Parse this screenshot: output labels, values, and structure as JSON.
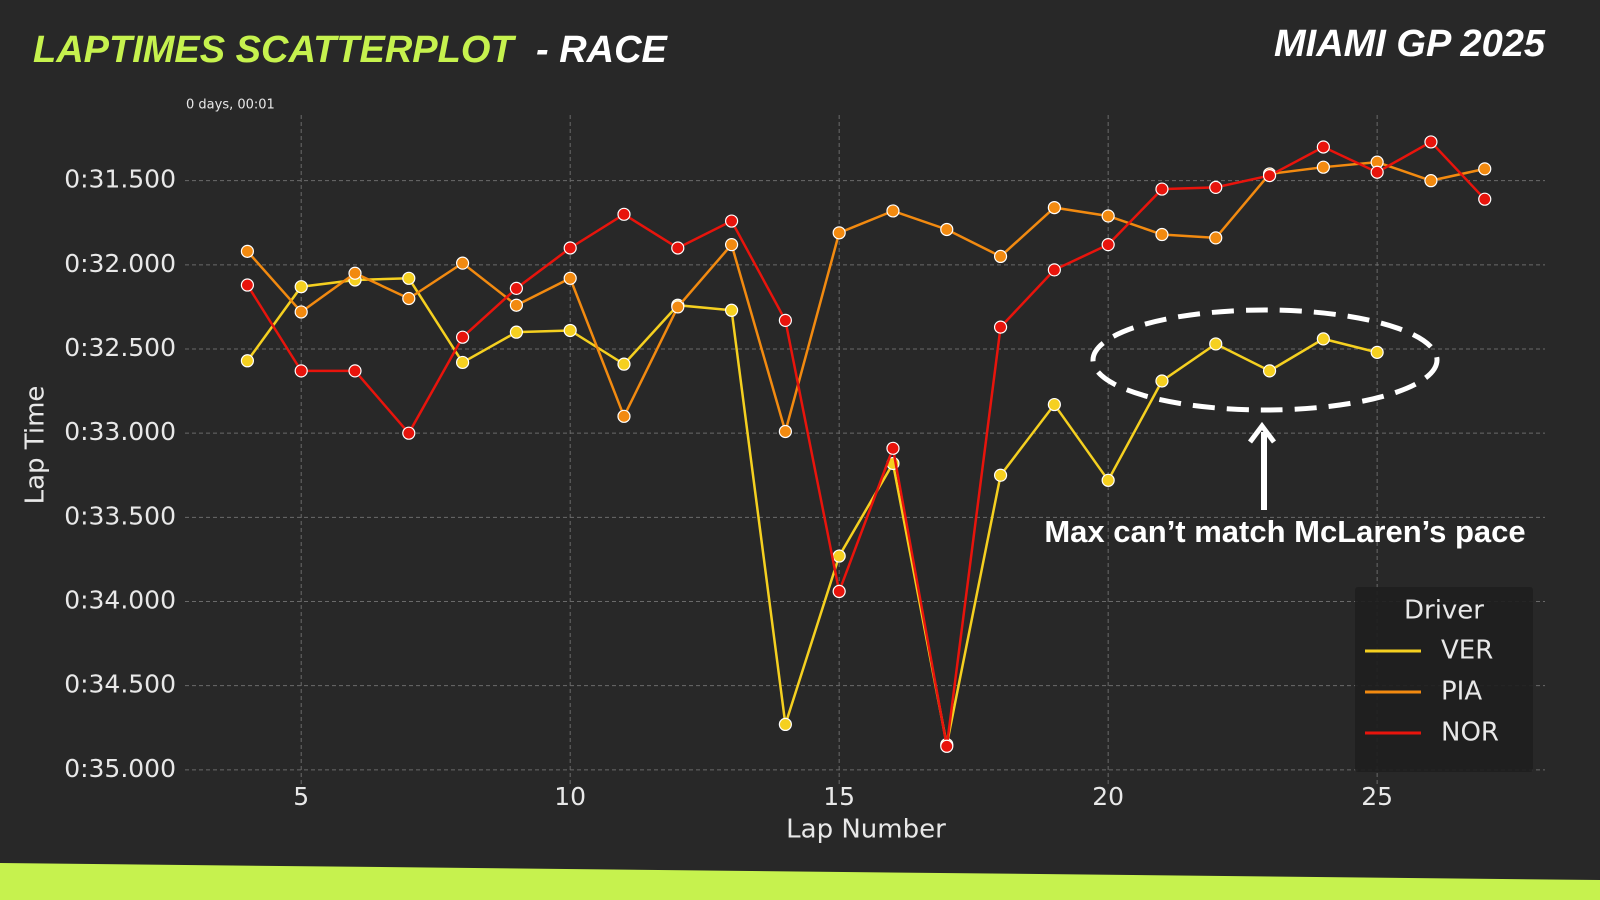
{
  "chart_data": {
    "type": "line",
    "title": "LAPTIMES SCATTERPLOT",
    "title_suffix": "- RACE",
    "subtitle": "MIAMI GP 2025",
    "offset_label": "0 days, 00:01",
    "x_label": "Lap Number",
    "y_label": "Lap Time",
    "annotation": "Max can’t match McLaren’s pace",
    "legend_title": "Driver",
    "legend": "lower right",
    "grid": true,
    "xlim": [
      2.84,
      28.12
    ],
    "xticks": [
      5,
      10,
      15,
      20,
      25
    ],
    "ylim": [
      35.09,
      31.11
    ],
    "yticks": [
      {
        "value": 31.5,
        "label": "0:31.500"
      },
      {
        "value": 32.0,
        "label": "0:32.000"
      },
      {
        "value": 32.5,
        "label": "0:32.500"
      },
      {
        "value": 33.0,
        "label": "0:33.000"
      },
      {
        "value": 33.5,
        "label": "0:33.500"
      },
      {
        "value": 34.0,
        "label": "0:34.000"
      },
      {
        "value": 34.5,
        "label": "0:34.500"
      },
      {
        "value": 35.0,
        "label": "0:35.000"
      }
    ],
    "series": [
      {
        "name": "VER",
        "color": "#f5d020",
        "x": [
          4,
          5,
          6,
          7,
          8,
          9,
          10,
          11,
          12,
          13,
          14,
          15,
          16,
          17,
          18,
          19,
          20,
          21,
          22,
          23,
          24,
          25
        ],
        "values": [
          32.57,
          32.13,
          32.09,
          32.08,
          32.58,
          32.4,
          32.39,
          32.59,
          32.24,
          32.27,
          34.73,
          33.73,
          33.18,
          34.85,
          33.25,
          32.83,
          33.28,
          32.69,
          32.47,
          32.63,
          32.44,
          32.52
        ]
      },
      {
        "name": "PIA",
        "color": "#f28a10",
        "x": [
          4,
          5,
          6,
          7,
          8,
          9,
          10,
          11,
          12,
          13,
          14,
          15,
          16,
          17,
          18,
          19,
          20,
          21,
          22,
          23,
          24,
          25,
          26,
          27
        ],
        "values": [
          31.92,
          32.28,
          32.05,
          32.2,
          31.99,
          32.24,
          32.08,
          32.9,
          32.25,
          31.88,
          32.99,
          31.81,
          31.68,
          31.79,
          31.95,
          31.66,
          31.71,
          31.82,
          31.84,
          31.46,
          31.42,
          31.39,
          31.5,
          31.43
        ]
      },
      {
        "name": "NOR",
        "color": "#e8140c",
        "x": [
          4,
          5,
          6,
          7,
          8,
          9,
          10,
          11,
          12,
          13,
          14,
          15,
          16,
          17,
          18,
          19,
          20,
          21,
          22,
          23,
          24,
          25,
          26,
          27
        ],
        "values": [
          32.12,
          32.63,
          32.63,
          33.0,
          32.43,
          32.14,
          31.9,
          31.7,
          31.9,
          31.74,
          32.33,
          33.94,
          33.09,
          34.86,
          32.37,
          32.03,
          31.88,
          31.55,
          31.54,
          31.47,
          31.3,
          31.45,
          31.27,
          31.61
        ]
      }
    ]
  }
}
